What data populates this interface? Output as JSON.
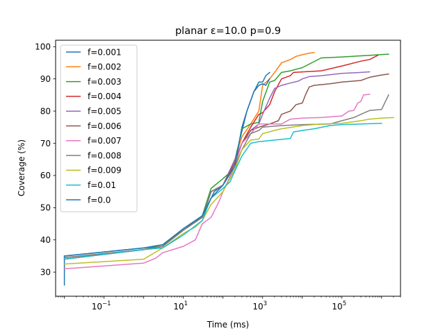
{
  "chart_data": {
    "type": "line",
    "title": "planar ε=10.0 p=0.9",
    "xlabel": "Time (ms)",
    "ylabel": "Coverage (%)",
    "xscale": "log",
    "xlim": [
      0.006,
      3000000
    ],
    "ylim": [
      22.5,
      102
    ],
    "xticks": [
      {
        "value": 0.1,
        "base": "10",
        "exp": "−1"
      },
      {
        "value": 10,
        "base": "10",
        "exp": "1"
      },
      {
        "value": 1000,
        "base": "10",
        "exp": "3"
      },
      {
        "value": 100000,
        "base": "10",
        "exp": "5"
      }
    ],
    "yticks": [
      30,
      40,
      50,
      60,
      70,
      80,
      90,
      100
    ],
    "grid": false,
    "legend_position": "upper-left",
    "series": [
      {
        "name": "f=0.001",
        "color": "#1f77b4",
        "points": [
          [
            0.01,
            26
          ],
          [
            0.01,
            35
          ],
          [
            1,
            37.5
          ],
          [
            3,
            38.5
          ],
          [
            10,
            43
          ],
          [
            30,
            47
          ],
          [
            60,
            55
          ],
          [
            100,
            57
          ],
          [
            200,
            65
          ],
          [
            400,
            80
          ],
          [
            600,
            86
          ],
          [
            800,
            89
          ],
          [
            1000,
            89
          ],
          [
            1200,
            91
          ],
          [
            1500,
            92
          ]
        ]
      },
      {
        "name": "f=0.002",
        "color": "#ff7f0e",
        "points": [
          [
            0.01,
            34.5
          ],
          [
            1,
            37
          ],
          [
            3,
            38
          ],
          [
            10,
            43
          ],
          [
            30,
            47
          ],
          [
            50,
            55
          ],
          [
            100,
            57
          ],
          [
            200,
            65
          ],
          [
            300,
            72
          ],
          [
            500,
            76
          ],
          [
            800,
            80
          ],
          [
            1000,
            88
          ],
          [
            1500,
            90
          ],
          [
            2000,
            92
          ],
          [
            3000,
            95
          ],
          [
            5000,
            96
          ],
          [
            7000,
            97
          ],
          [
            10000,
            97.5
          ],
          [
            15000,
            98
          ],
          [
            20000,
            98.2
          ]
        ]
      },
      {
        "name": "f=0.003",
        "color": "#2ca02c",
        "points": [
          [
            0.01,
            34
          ],
          [
            1,
            37
          ],
          [
            3,
            38.5
          ],
          [
            10,
            43
          ],
          [
            30,
            47.5
          ],
          [
            50,
            56
          ],
          [
            100,
            59
          ],
          [
            150,
            61
          ],
          [
            200,
            64
          ],
          [
            300,
            74.5
          ],
          [
            500,
            76
          ],
          [
            800,
            76.5
          ],
          [
            1000,
            83
          ],
          [
            1500,
            89
          ],
          [
            2000,
            89.5
          ],
          [
            3000,
            92
          ],
          [
            5000,
            92.5
          ],
          [
            7000,
            93
          ],
          [
            10000,
            93.5
          ],
          [
            30000,
            96.5
          ],
          [
            100000,
            96.8
          ],
          [
            500000,
            97.3
          ],
          [
            1500000,
            97.7
          ]
        ]
      },
      {
        "name": "f=0.004",
        "color": "#d62728",
        "points": [
          [
            0.01,
            34
          ],
          [
            1,
            37
          ],
          [
            3,
            38
          ],
          [
            10,
            43
          ],
          [
            30,
            47
          ],
          [
            50,
            55
          ],
          [
            100,
            57
          ],
          [
            200,
            64
          ],
          [
            300,
            70
          ],
          [
            500,
            75
          ],
          [
            800,
            79
          ],
          [
            1000,
            79.5
          ],
          [
            1500,
            82
          ],
          [
            2000,
            86
          ],
          [
            3000,
            90
          ],
          [
            5000,
            91
          ],
          [
            6000,
            92
          ],
          [
            30000,
            92.5
          ],
          [
            100000,
            94
          ],
          [
            300000,
            95.5
          ],
          [
            500000,
            96
          ],
          [
            800000,
            97.3
          ]
        ]
      },
      {
        "name": "f=0.005",
        "color": "#9467bd",
        "points": [
          [
            0.01,
            34
          ],
          [
            1,
            37
          ],
          [
            3,
            38
          ],
          [
            10,
            43
          ],
          [
            30,
            47
          ],
          [
            50,
            55
          ],
          [
            100,
            57
          ],
          [
            200,
            65
          ],
          [
            300,
            70
          ],
          [
            500,
            74
          ],
          [
            800,
            76
          ],
          [
            1000,
            79
          ],
          [
            1500,
            84
          ],
          [
            2000,
            87
          ],
          [
            3000,
            88
          ],
          [
            5000,
            88.7
          ],
          [
            8000,
            89.3
          ],
          [
            10000,
            90
          ],
          [
            15000,
            90.7
          ],
          [
            30000,
            91
          ],
          [
            100000,
            91.7
          ],
          [
            300000,
            92
          ],
          [
            500000,
            92.2
          ]
        ]
      },
      {
        "name": "f=0.006",
        "color": "#8c564b",
        "points": [
          [
            0.01,
            34
          ],
          [
            1,
            37
          ],
          [
            3,
            38
          ],
          [
            10,
            43
          ],
          [
            30,
            47
          ],
          [
            50,
            55
          ],
          [
            100,
            57
          ],
          [
            200,
            64
          ],
          [
            300,
            70
          ],
          [
            500,
            74
          ],
          [
            800,
            75
          ],
          [
            1500,
            76
          ],
          [
            2500,
            77
          ],
          [
            3000,
            79
          ],
          [
            5000,
            80
          ],
          [
            7000,
            82
          ],
          [
            10000,
            82.5
          ],
          [
            12000,
            85
          ],
          [
            15000,
            87.5
          ],
          [
            20000,
            88
          ],
          [
            50000,
            88.5
          ],
          [
            100000,
            89
          ],
          [
            300000,
            89.5
          ],
          [
            500000,
            90.5
          ],
          [
            1000000,
            91.2
          ],
          [
            1500000,
            91.5
          ]
        ]
      },
      {
        "name": "f=0.007",
        "color": "#e377c2",
        "points": [
          [
            0.01,
            31
          ],
          [
            1,
            32.8
          ],
          [
            2,
            34.3
          ],
          [
            3,
            36
          ],
          [
            10,
            38
          ],
          [
            20,
            40
          ],
          [
            30,
            45
          ],
          [
            50,
            47
          ],
          [
            80,
            52
          ],
          [
            100,
            55
          ],
          [
            200,
            63
          ],
          [
            300,
            70
          ],
          [
            500,
            73
          ],
          [
            800,
            76
          ],
          [
            1000,
            76
          ],
          [
            3000,
            76
          ],
          [
            5000,
            77.5
          ],
          [
            10000,
            77.8
          ],
          [
            30000,
            78
          ],
          [
            100000,
            78.5
          ],
          [
            150000,
            80
          ],
          [
            200000,
            80.2
          ],
          [
            250000,
            82.5
          ],
          [
            300000,
            83
          ],
          [
            350000,
            85
          ],
          [
            500000,
            85.2
          ]
        ]
      },
      {
        "name": "f=0.008",
        "color": "#7f7f7f",
        "points": [
          [
            0.01,
            34.5
          ],
          [
            1,
            37
          ],
          [
            3,
            38
          ],
          [
            10,
            43
          ],
          [
            30,
            47
          ],
          [
            50,
            55
          ],
          [
            100,
            57
          ],
          [
            200,
            63
          ],
          [
            300,
            68
          ],
          [
            500,
            73
          ],
          [
            800,
            74
          ],
          [
            1000,
            75
          ],
          [
            3000,
            75.5
          ],
          [
            10000,
            75.8
          ],
          [
            50000,
            76
          ],
          [
            100000,
            77
          ],
          [
            200000,
            78
          ],
          [
            300000,
            79
          ],
          [
            500000,
            80.2
          ],
          [
            1000000,
            80.5
          ],
          [
            1500000,
            85
          ]
        ]
      },
      {
        "name": "f=0.009",
        "color": "#bcbd22",
        "points": [
          [
            0.01,
            32.5
          ],
          [
            1,
            34
          ],
          [
            3,
            37.5
          ],
          [
            10,
            42
          ],
          [
            20,
            44
          ],
          [
            30,
            46
          ],
          [
            50,
            51
          ],
          [
            100,
            55
          ],
          [
            200,
            62
          ],
          [
            300,
            68
          ],
          [
            500,
            71
          ],
          [
            800,
            71.3
          ],
          [
            1000,
            73
          ],
          [
            2000,
            74
          ],
          [
            3000,
            74.5
          ],
          [
            10000,
            75.5
          ],
          [
            30000,
            76
          ],
          [
            100000,
            76.2
          ],
          [
            300000,
            77
          ],
          [
            500000,
            77.5
          ],
          [
            1000000,
            77.8
          ],
          [
            2000000,
            78
          ]
        ]
      },
      {
        "name": "f=0.01",
        "color": "#17becf",
        "points": [
          [
            0.01,
            34
          ],
          [
            1,
            37
          ],
          [
            3,
            37.5
          ],
          [
            10,
            41.5
          ],
          [
            30,
            46
          ],
          [
            50,
            53
          ],
          [
            80,
            55
          ],
          [
            100,
            56
          ],
          [
            150,
            58
          ],
          [
            200,
            61.5
          ],
          [
            300,
            66
          ],
          [
            500,
            70
          ],
          [
            800,
            70.5
          ],
          [
            2000,
            71
          ],
          [
            5000,
            71.5
          ],
          [
            6000,
            73.5
          ],
          [
            10000,
            74
          ],
          [
            20000,
            74.5
          ],
          [
            50000,
            75.5
          ],
          [
            100000,
            75.8
          ],
          [
            300000,
            76
          ],
          [
            1000000,
            76.2
          ]
        ]
      },
      {
        "name": "f=0.0",
        "color": "#1f77b4",
        "points": [
          [
            0.01,
            35
          ],
          [
            1,
            37.5
          ],
          [
            3,
            38.5
          ],
          [
            10,
            43.5
          ],
          [
            30,
            47.5
          ],
          [
            50,
            53
          ],
          [
            100,
            57
          ],
          [
            200,
            63
          ],
          [
            300,
            75
          ],
          [
            400,
            80
          ],
          [
            600,
            86
          ],
          [
            800,
            88
          ],
          [
            1000,
            88.5
          ],
          [
            1200,
            88
          ],
          [
            1500,
            90
          ]
        ]
      }
    ]
  }
}
